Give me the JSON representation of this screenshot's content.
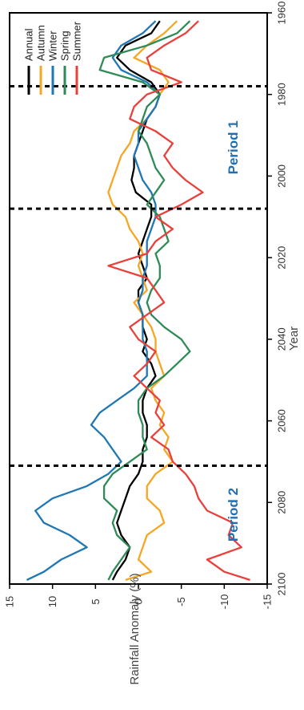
{
  "chart_data": {
    "type": "line",
    "orientation": "rotated 90 degrees clockwise (x axis runs top to bottom, y axis left to right)",
    "xlabel": "Year",
    "ylabel": "Rainfall Anomaly (%)",
    "xlim": [
      1960,
      2100
    ],
    "ylim": [
      -15,
      15
    ],
    "x_ticks": [
      "1960",
      "1980",
      "2000",
      "2020",
      "2040",
      "2060",
      "2080",
      "2100"
    ],
    "y_ticks": [
      "15",
      "10",
      "5",
      "0",
      "-5",
      "-10",
      "-15"
    ],
    "grid": false,
    "legend_position": "top-left",
    "vlines": [
      1978,
      2008,
      2071
    ],
    "annotations": [
      {
        "text": "Period 1",
        "x": 1993,
        "y": -11
      },
      {
        "text": "Period 2",
        "x": 2083,
        "y": -11
      }
    ],
    "x": [
      1962,
      1965,
      1968,
      1971,
      1974,
      1977,
      1980,
      1983,
      1986,
      1989,
      1992,
      1995,
      1998,
      2001,
      2004,
      2007,
      2010,
      2013,
      2016,
      2019,
      2022,
      2025,
      2028,
      2031,
      2034,
      2037,
      2040,
      2043,
      2046,
      2049,
      2052,
      2055,
      2058,
      2061,
      2064,
      2067,
      2070,
      2073,
      2076,
      2079,
      2082,
      2085,
      2088,
      2091,
      2094,
      2097,
      2099
    ],
    "series": [
      {
        "name": "Annual",
        "color": "#000000",
        "values": [
          -2.5,
          -1.5,
          1.5,
          2.5,
          1,
          -1.5,
          -2.5,
          -2,
          -1,
          -0.5,
          0,
          0.5,
          0.5,
          0.8,
          0.3,
          -1.5,
          -1.5,
          -1,
          -0.5,
          0,
          -0.5,
          -1,
          0,
          0,
          -0.5,
          -0.5,
          -1,
          -0.5,
          -1.5,
          -2,
          -1,
          -0.5,
          -0.5,
          -1,
          -1,
          -0.5,
          -0.5,
          0,
          1,
          1.5,
          2,
          2.5,
          2,
          1,
          1.5,
          2.5,
          3
        ]
      },
      {
        "name": "Autumn",
        "color": "#f5a623",
        "values": [
          -4.5,
          -3,
          -1,
          0.5,
          -2.5,
          -3.5,
          -2.5,
          -2,
          -1,
          0.5,
          1,
          2,
          2.5,
          3,
          3.5,
          3,
          1.5,
          1,
          0,
          -0.5,
          0,
          -0.5,
          -1,
          0.5,
          -0.5,
          -1.5,
          -2,
          -2,
          -2.5,
          -3,
          -1.5,
          -2,
          -3,
          -2.5,
          -3.5,
          -3,
          -4,
          -2,
          -1,
          -1,
          -2.5,
          -3,
          -1,
          -0.5,
          0,
          -1.5,
          1.5
        ]
      },
      {
        "name": "Winter",
        "color": "#1f77b4",
        "values": [
          -2,
          -0.5,
          2,
          3,
          2,
          -1,
          -2.5,
          -2,
          -1,
          0,
          0,
          0.5,
          0,
          -0.5,
          -1.5,
          -2,
          -2,
          -1.5,
          -1,
          -1,
          -1,
          -0.5,
          -0.5,
          0,
          -0.5,
          -0.5,
          -0.5,
          -1,
          -1,
          -1,
          0.5,
          2.5,
          4.5,
          5.5,
          4,
          3,
          2,
          3.5,
          6,
          10,
          12,
          11,
          8,
          6,
          9,
          11,
          13
        ]
      },
      {
        "name": "Spring",
        "color": "#2e8b57",
        "values": [
          -6,
          -4.5,
          -1,
          4,
          4.5,
          -0.5,
          -2.5,
          -1,
          -0.5,
          0,
          -1,
          -1.5,
          -2,
          -3,
          -2,
          -1,
          -2.5,
          -3,
          -3.5,
          -2,
          -2.5,
          -2.5,
          -1.5,
          -1,
          -1.5,
          -3,
          -5,
          -6,
          -4.5,
          -3,
          -1,
          0,
          0,
          -0.5,
          -0.5,
          -1,
          1,
          3,
          4,
          4,
          2.5,
          3,
          2.5,
          1,
          2,
          3,
          3.5
        ]
      },
      {
        "name": "Summer",
        "color": "#e8413c",
        "values": [
          -7,
          -5.5,
          -3,
          -1,
          -1.5,
          -5,
          -1,
          0.5,
          1,
          -2,
          -4,
          -3,
          -4,
          -5.5,
          -7.5,
          -5,
          -2,
          -4,
          -2,
          -1,
          3.5,
          -1,
          -2,
          -3,
          -1,
          1,
          0,
          -2,
          -1,
          0.5,
          -1,
          -2.5,
          -2,
          -3,
          -1.5,
          -3.5,
          -4,
          -5.5,
          -6.5,
          -7,
          -8,
          -11,
          -10.5,
          -12,
          -8,
          -10,
          -13
        ]
      }
    ]
  }
}
